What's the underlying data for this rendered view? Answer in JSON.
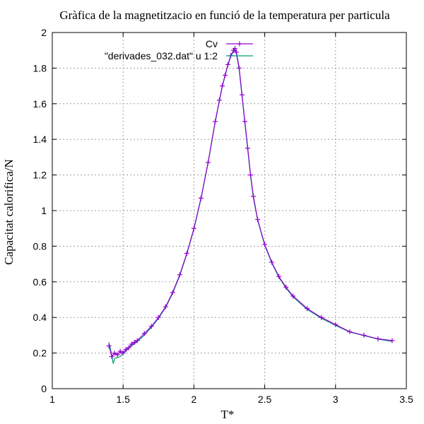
{
  "chart_data": {
    "type": "line",
    "title": "Gràfica de la magnetitzacio en funció de la temperatura per particula",
    "xlabel": "T*",
    "ylabel": "Capacitat calorifica/N",
    "xlim": [
      1,
      3.5
    ],
    "ylim": [
      0,
      2
    ],
    "xticks": [
      "1",
      "1.5",
      "2",
      "2.5",
      "3",
      "3.5"
    ],
    "yticks": [
      "0",
      "0.2",
      "0.4",
      "0.6",
      "0.8",
      "1",
      "1.2",
      "1.4",
      "1.6",
      "1.8",
      "2"
    ],
    "grid": true,
    "legend_position": "top-right",
    "series": [
      {
        "name": "Cv",
        "color": "#9400d3",
        "style": "lines+points",
        "x": [
          1.4,
          1.42,
          1.44,
          1.46,
          1.48,
          1.5,
          1.52,
          1.54,
          1.56,
          1.58,
          1.6,
          1.65,
          1.7,
          1.75,
          1.8,
          1.85,
          1.9,
          1.95,
          2.0,
          2.05,
          2.1,
          2.15,
          2.18,
          2.2,
          2.22,
          2.24,
          2.26,
          2.28,
          2.29,
          2.3,
          2.32,
          2.34,
          2.36,
          2.38,
          2.4,
          2.42,
          2.45,
          2.5,
          2.55,
          2.6,
          2.65,
          2.7,
          2.8,
          2.9,
          3.0,
          3.1,
          3.2,
          3.3,
          3.4
        ],
        "y": [
          0.24,
          0.18,
          0.2,
          0.19,
          0.21,
          0.2,
          0.22,
          0.23,
          0.25,
          0.26,
          0.27,
          0.31,
          0.35,
          0.4,
          0.46,
          0.54,
          0.64,
          0.76,
          0.9,
          1.07,
          1.27,
          1.5,
          1.62,
          1.7,
          1.76,
          1.82,
          1.87,
          1.9,
          1.91,
          1.89,
          1.8,
          1.65,
          1.5,
          1.35,
          1.2,
          1.08,
          0.95,
          0.81,
          0.71,
          0.63,
          0.57,
          0.52,
          0.45,
          0.4,
          0.36,
          0.32,
          0.3,
          0.28,
          0.27
        ]
      },
      {
        "name": "\"derivades_032.dat\" u 1:2",
        "color": "#009e73",
        "style": "lines",
        "x": [
          1.4,
          1.42,
          1.43,
          1.44,
          1.46,
          1.48,
          1.5,
          1.52,
          1.54,
          1.56,
          1.58,
          1.6,
          1.65,
          1.7,
          1.75,
          1.8,
          1.85,
          1.9,
          1.95,
          2.0,
          2.05,
          2.1,
          2.15,
          2.18,
          2.2,
          2.22,
          2.24,
          2.26,
          2.28,
          2.29,
          2.3,
          2.32,
          2.34,
          2.36,
          2.38,
          2.4,
          2.42,
          2.45,
          2.5,
          2.55,
          2.6,
          2.65,
          2.7,
          2.8,
          2.9,
          3.0,
          3.1,
          3.2,
          3.3,
          3.4
        ],
        "y": [
          0.26,
          0.19,
          0.14,
          0.17,
          0.175,
          0.18,
          0.2,
          0.21,
          0.23,
          0.24,
          0.25,
          0.265,
          0.3,
          0.345,
          0.395,
          0.455,
          0.535,
          0.635,
          0.755,
          0.895,
          1.065,
          1.265,
          1.495,
          1.615,
          1.695,
          1.755,
          1.815,
          1.865,
          1.895,
          1.9,
          1.88,
          1.79,
          1.64,
          1.49,
          1.34,
          1.19,
          1.07,
          0.945,
          0.805,
          0.705,
          0.625,
          0.565,
          0.515,
          0.445,
          0.395,
          0.355,
          0.318,
          0.298,
          0.278,
          0.265
        ]
      }
    ]
  }
}
